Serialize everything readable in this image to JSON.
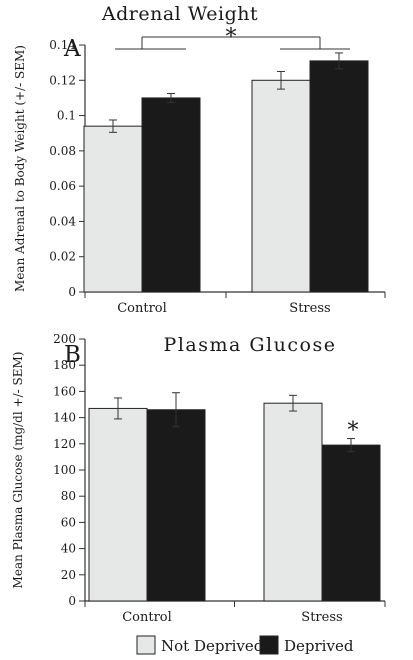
{
  "chart_data": [
    {
      "type": "bar",
      "panel_letter": "A",
      "title": "Adrenal Weight",
      "xlabel": "",
      "ylabel": "Mean Adrenal to Body Weight (+/- SEM)",
      "categories": [
        "Control",
        "Stress"
      ],
      "ylim": [
        0,
        0.14
      ],
      "yticks": [
        0,
        0.02,
        0.04,
        0.06,
        0.08,
        0.1,
        0.12,
        0.14
      ],
      "ytick_labels": [
        "0",
        "0.02",
        "0.04",
        "0.06",
        "0.08",
        "0.1",
        "0.12",
        "0.14"
      ],
      "series": [
        {
          "name": "Not Deprived",
          "values": [
            0.094,
            0.12
          ],
          "errors": [
            0.0035,
            0.005
          ],
          "color": "#e6e8e8"
        },
        {
          "name": "Deprived",
          "values": [
            0.11,
            0.131
          ],
          "errors": [
            0.0025,
            0.0045
          ],
          "color": "#1a1a1a"
        }
      ],
      "annotations": [
        {
          "type": "group-bracket",
          "text": "*",
          "between": [
            "Control",
            "Stress"
          ],
          "y": 0.14
        }
      ],
      "grid": false
    },
    {
      "type": "bar",
      "panel_letter": "B",
      "title": "Plasma Glucose",
      "xlabel": "",
      "ylabel": "Mean Plasma Glucose (mg/dl +/- SEM)",
      "categories": [
        "Control",
        "Stress"
      ],
      "ylim": [
        0,
        200
      ],
      "yticks": [
        0,
        20,
        40,
        60,
        80,
        100,
        120,
        140,
        160,
        180,
        200
      ],
      "ytick_labels": [
        "0",
        "20",
        "40",
        "60",
        "80",
        "100",
        "120",
        "140",
        "160",
        "180",
        "200"
      ],
      "series": [
        {
          "name": "Not Deprived",
          "values": [
            147,
            151
          ],
          "errors": [
            8,
            6
          ],
          "color": "#e6e8e8"
        },
        {
          "name": "Deprived",
          "values": [
            146,
            119
          ],
          "errors": [
            13,
            5
          ],
          "color": "#1a1a1a"
        }
      ],
      "annotations": [
        {
          "type": "bar-marker",
          "text": "*",
          "category": "Stress",
          "series": "Deprived"
        }
      ],
      "grid": false
    }
  ],
  "legend": {
    "placement": "bottom",
    "items": [
      {
        "label": "Not Deprived",
        "color": "#e6e8e8"
      },
      {
        "label": "Deprived",
        "color": "#1a1a1a"
      }
    ]
  }
}
